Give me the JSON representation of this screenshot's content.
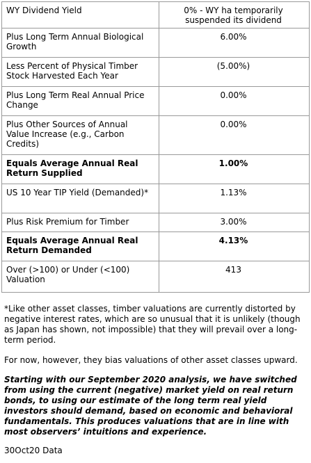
{
  "table": {
    "rows": [
      [
        "WY Dividend Yield",
        "0% - WY ha temporarily suspended its dividend"
      ],
      [
        "Plus Long Term Annual Biological Growth",
        "6.00%"
      ],
      [
        "Less Percent of Physical Timber Stock Harvested Each Year",
        "(5.00%)"
      ],
      [
        "Plus Long Term Real Annual Price Change",
        "0.00%"
      ],
      [
        "Plus Other Sources of Annual Value Increase (e.g., Carbon Credits)",
        "0.00%"
      ],
      [
        "Equals Average Annual Real Return Supplied",
        "1.00%"
      ],
      [
        "US 10 Year TIP Yield (Demanded)*",
        "1.13%"
      ],
      [
        "Plus Risk Premium for Timber",
        "3.00%"
      ],
      [
        "Equals Average Annual Real Return Demanded",
        "4.13%"
      ],
      [
        "Over (>100) or Under (<100) Valuation",
        "413"
      ]
    ]
  },
  "notes": [
    "*Like other asset classes, timber valuations are currently distorted by negative interest rates, which are so unusual that it is unlikely (though as Japan has shown, not impossible) that they will prevail over a long-term period.",
    "For now, however, they bias valuations of other asset classes upward.",
    "Starting with our September 2020 analysis, we have switched from using the current (negative) market yield on real return bonds, to using our estimate of the long term real yield investors should demand, based on economic and behavioral fundamentals. This produces valuations that are in line with most observers’ intuitions and experience."
  ],
  "footer": "30Oct20 Data"
}
